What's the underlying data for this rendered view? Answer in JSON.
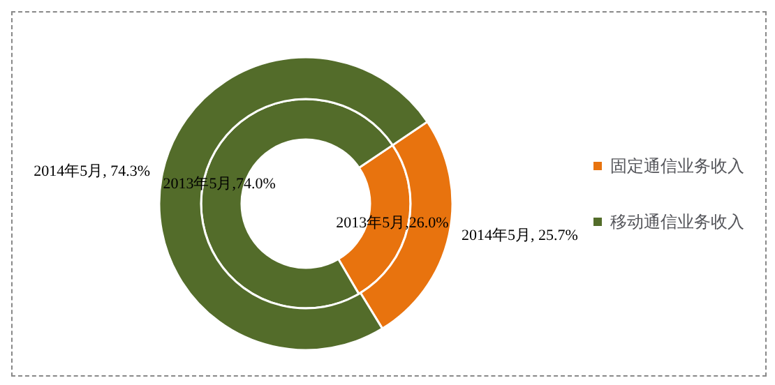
{
  "chart_data": {
    "type": "donut",
    "categories": [
      "固定通信业务收入",
      "移动通信业务收入"
    ],
    "colors": [
      "#e8730e",
      "#536c2a"
    ],
    "legend": "right",
    "series": [
      {
        "values": [
          26.0,
          74.0
        ],
        "value_labels": [
          "2013年5月,26.0%",
          "2013年5月,74.0%"
        ]
      },
      {
        "values": [
          25.7,
          74.3
        ],
        "value_labels": [
          "2014年5月, 25.7%",
          "2014年5月, 74.3%"
        ]
      }
    ]
  }
}
